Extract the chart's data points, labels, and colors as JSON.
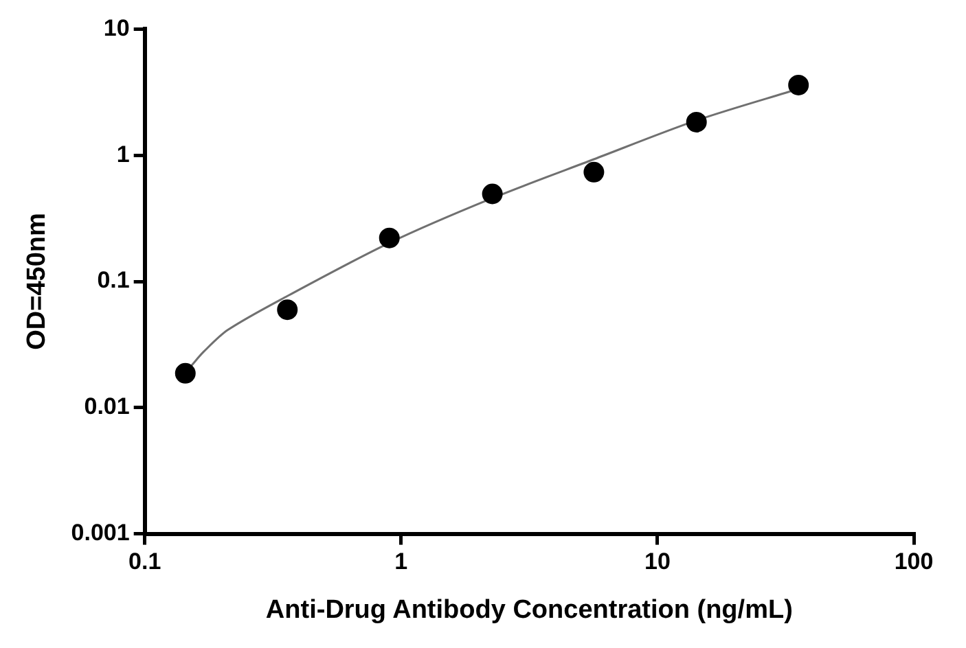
{
  "chart_data": {
    "type": "scatter",
    "xlabel": "Anti-Drug Antibody Concentration (ng/mL)",
    "ylabel": "OD=450nm",
    "log": "xy",
    "xlim": [
      0.1,
      100
    ],
    "xticks": [
      0.1,
      1,
      10,
      100
    ],
    "ylim": [
      0.001,
      10
    ],
    "yticks": [
      0.001,
      0.01,
      0.1,
      1,
      10
    ],
    "grid": false,
    "legend": false,
    "marker": "circle",
    "series": [
      {
        "type": "line",
        "marker": "none",
        "color": "#707070",
        "line_style": "solid",
        "x": [
          0.152,
          0.17,
          0.211,
          0.36,
          0.9,
          2.27,
          5.65,
          14.2,
          35.5
        ],
        "values": [
          0.0215,
          0.0278,
          0.0413,
          0.0766,
          0.202,
          0.457,
          0.93,
          1.89,
          3.36
        ]
      },
      {
        "type": "scatter",
        "color": "#000000",
        "x": [
          0.144,
          0.36,
          0.9,
          2.27,
          5.65,
          14.2,
          35.5
        ],
        "values": [
          0.0187,
          0.0597,
          0.221,
          0.494,
          0.735,
          1.83,
          3.6
        ]
      }
    ]
  }
}
